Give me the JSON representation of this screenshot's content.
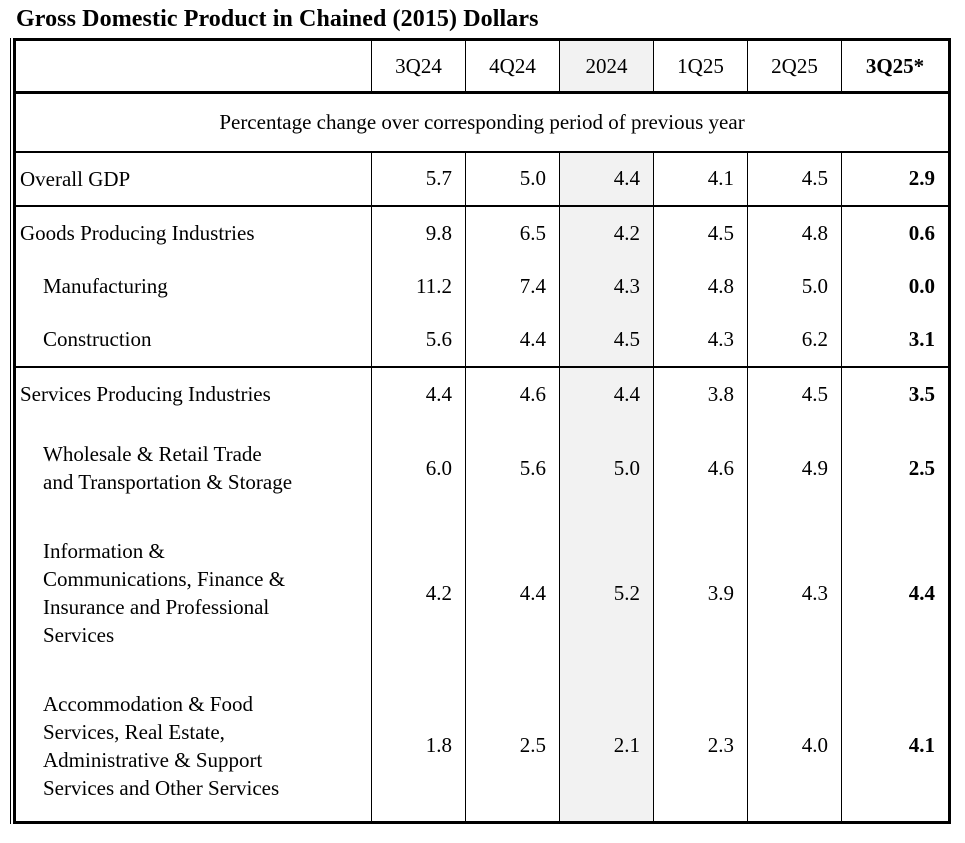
{
  "title": "Gross Domestic Product in Chained (2015) Dollars",
  "table": {
    "subtitle": "Percentage change over corresponding period of previous year",
    "columns": [
      "3Q24",
      "4Q24",
      "2024",
      "1Q25",
      "2Q25",
      "3Q25*"
    ],
    "highlighted_column": "2024",
    "colors": {
      "highlight_bg": "#f2f2f2",
      "border": "#000000",
      "text": "#000000",
      "background": "#ffffff"
    },
    "rows": [
      {
        "label": "Overall GDP",
        "indent": 0,
        "values": [
          "5.7",
          "5.0",
          "4.4",
          "4.1",
          "4.5",
          "2.9"
        ]
      },
      {
        "label": "Goods Producing Industries",
        "indent": 0,
        "values": [
          "9.8",
          "6.5",
          "4.2",
          "4.5",
          "4.8",
          "0.6"
        ]
      },
      {
        "label": "Manufacturing",
        "indent": 1,
        "values": [
          "11.2",
          "7.4",
          "4.3",
          "4.8",
          "5.0",
          "0.0"
        ]
      },
      {
        "label": "Construction",
        "indent": 1,
        "values": [
          "5.6",
          "4.4",
          "4.5",
          "4.3",
          "6.2",
          "3.1"
        ]
      },
      {
        "label": "Services Producing Industries",
        "indent": 0,
        "values": [
          "4.4",
          "4.6",
          "4.4",
          "3.8",
          "4.5",
          "3.5"
        ]
      },
      {
        "label": "Wholesale & Retail Trade\nand Transportation & Storage",
        "indent": 1,
        "values": [
          "6.0",
          "5.6",
          "5.0",
          "4.6",
          "4.9",
          "2.5"
        ]
      },
      {
        "label": "Information &\nCommunications, Finance &\nInsurance and Professional\nServices",
        "indent": 1,
        "values": [
          "4.2",
          "4.4",
          "5.2",
          "3.9",
          "4.3",
          "4.4"
        ]
      },
      {
        "label": "Accommodation & Food\nServices, Real Estate,\nAdministrative & Support\nServices and Other Services",
        "indent": 1,
        "values": [
          "1.8",
          "2.5",
          "2.1",
          "2.3",
          "4.0",
          "4.1"
        ]
      }
    ]
  }
}
